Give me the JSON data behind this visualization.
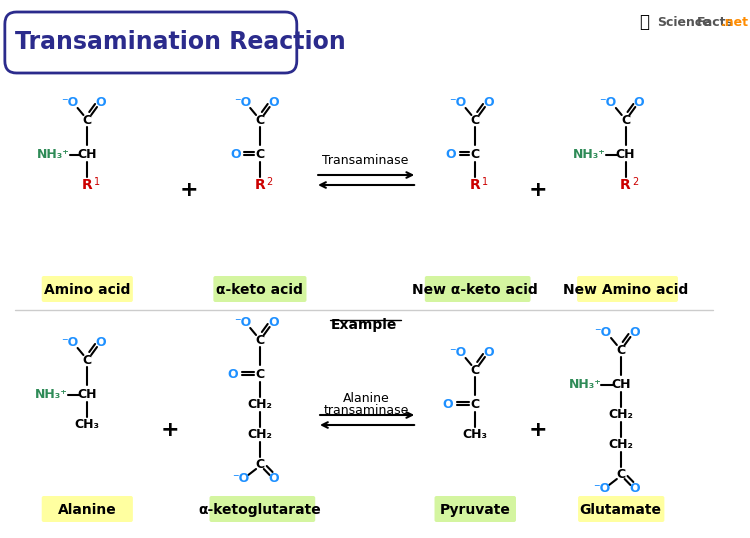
{
  "title": "Transamination Reaction",
  "title_color": "#2B2B8C",
  "title_box_color": "#2B2B8C",
  "bg_color": "#FFFFFF",
  "blue_color": "#1E90FF",
  "dark_blue": "#00008B",
  "green_color": "#2E8B57",
  "red_color": "#CC0000",
  "black_color": "#000000",
  "label_bg_amino": "#FFFFA0",
  "label_bg_keto": "#D4F5A0",
  "section1_labels": [
    "Amino acid",
    "α-keto acid",
    "New α-keto acid",
    "New Amino acid"
  ],
  "section2_labels": [
    "Alanine",
    "α-ketoglutarate",
    "Pyruvate",
    "Glutamate"
  ],
  "arrow_label1": "Transaminase",
  "arrow_label2a": "Alanine",
  "arrow_label2b": "transaminase",
  "example_label": "Example",
  "watermark": "ScienceFacts.net"
}
